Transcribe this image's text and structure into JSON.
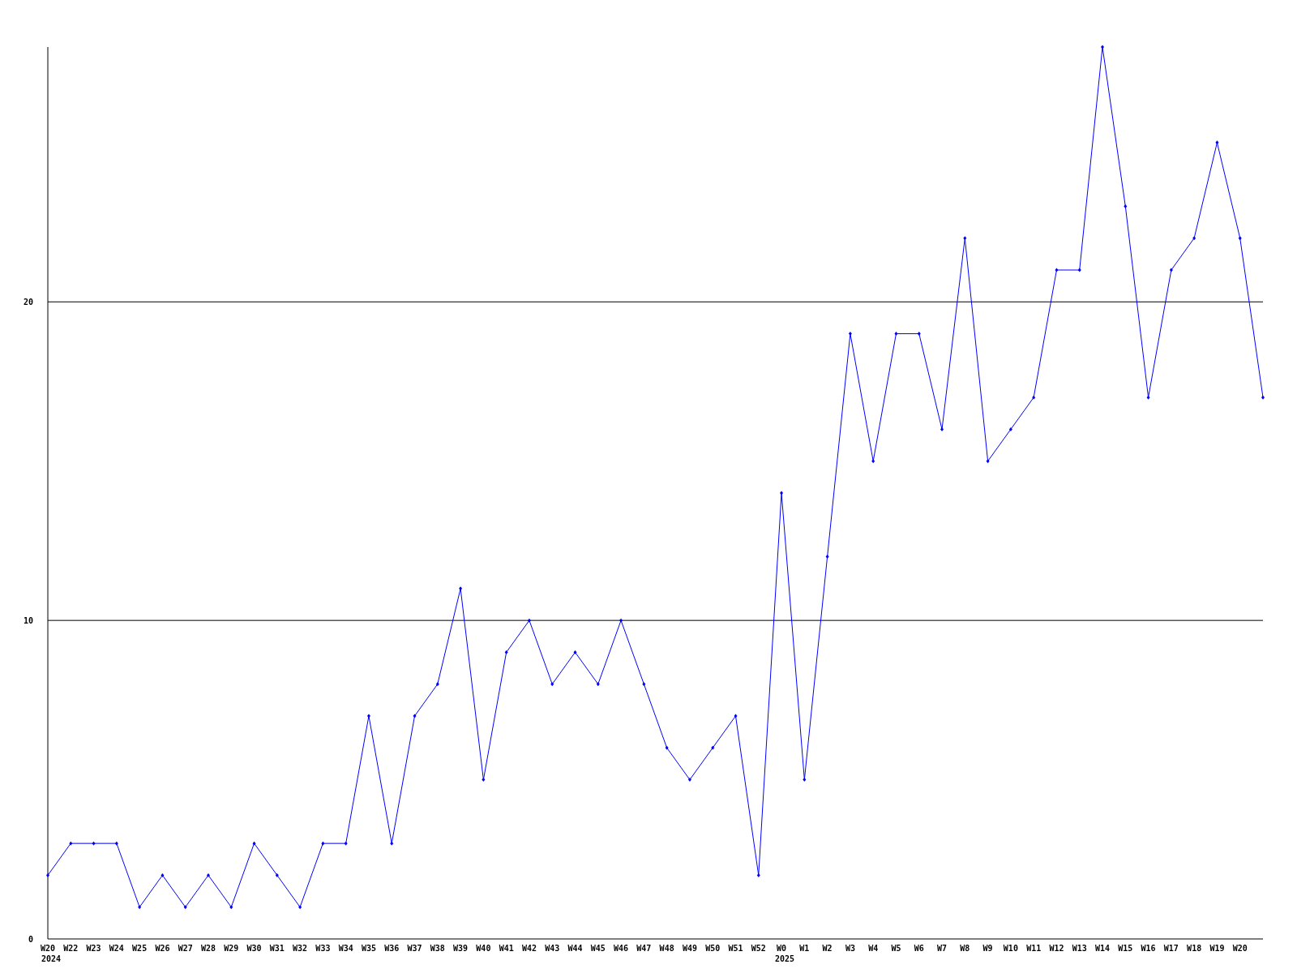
{
  "chart_data": {
    "type": "line",
    "categories": [
      "W20\n2024",
      "W22",
      "W23",
      "W24",
      "W25",
      "W26",
      "W27",
      "W28",
      "W29",
      "W30",
      "W31",
      "W32",
      "W33",
      "W34",
      "W35",
      "W36",
      "W37",
      "W38",
      "W39",
      "W40",
      "W41",
      "W42",
      "W43",
      "W44",
      "W45",
      "W46",
      "W47",
      "W48",
      "W49",
      "W50",
      "W51",
      "W52",
      "W0\n2025",
      "W1",
      "W2",
      "W3",
      "W4",
      "W5",
      "W6",
      "W7",
      "W8",
      "W9",
      "W10",
      "W11",
      "W12",
      "W13",
      "W14",
      "W15",
      "W16",
      "W17",
      "W18",
      "W19",
      "W20",
      null
    ],
    "series": [
      {
        "color": "#0000ff",
        "values": [
          2,
          3,
          3,
          3,
          1,
          2,
          1,
          2,
          1,
          3,
          2,
          1,
          3,
          3,
          7,
          3,
          7,
          8,
          11,
          5,
          9,
          10,
          8,
          9,
          8,
          10,
          8,
          6,
          5,
          6,
          7,
          2,
          14,
          5,
          12,
          19,
          15,
          19,
          19,
          16,
          22,
          15,
          16,
          17,
          21,
          21,
          28,
          23,
          17,
          21,
          22,
          25,
          22,
          17
        ]
      }
    ],
    "ylim": [
      0,
      28
    ],
    "yticks": [
      0,
      10,
      20
    ],
    "grid": "y",
    "marker": "diamond",
    "line_style": "solid"
  }
}
